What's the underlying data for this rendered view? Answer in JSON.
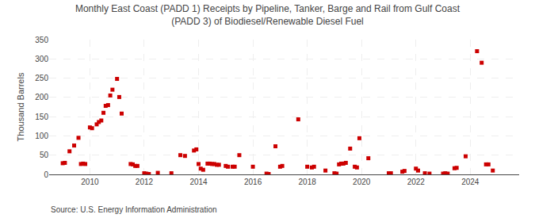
{
  "chart_data": {
    "type": "scatter",
    "title": "Monthly East Coast (PADD 1) Receipts by Pipeline, Tanker, Barge and Rail from Gulf Coast\n(PADD 3) of Biodiesel/Renewable Diesel Fuel",
    "ylabel": "Thousand Barrels",
    "annotations": [
      "Source: U.S. Energy Information Administration"
    ],
    "color": "#cc0000",
    "marker": "square",
    "grid": true,
    "xlim": [
      2008.5,
      2025.8
    ],
    "xticks": [
      2010,
      2012,
      2014,
      2016,
      2018,
      2020,
      2022,
      2024
    ],
    "ylim": [
      0,
      350
    ],
    "yticks": [
      0,
      50,
      100,
      150,
      200,
      250,
      300,
      350
    ],
    "x": [
      2009.0,
      2009.08,
      2009.25,
      2009.42,
      2009.58,
      2009.67,
      2009.75,
      2009.83,
      2010.0,
      2010.08,
      2010.25,
      2010.33,
      2010.42,
      2010.5,
      2010.58,
      2010.67,
      2010.75,
      2010.83,
      2011.0,
      2011.08,
      2011.17,
      2011.5,
      2011.58,
      2011.67,
      2011.75,
      2012.0,
      2012.08,
      2012.17,
      2012.5,
      2013.0,
      2013.33,
      2013.5,
      2013.83,
      2013.92,
      2014.0,
      2014.08,
      2014.17,
      2014.33,
      2014.42,
      2014.5,
      2014.58,
      2014.67,
      2014.75,
      2015.0,
      2015.08,
      2015.25,
      2015.33,
      2015.5,
      2016.0,
      2016.5,
      2016.58,
      2016.83,
      2017.0,
      2017.08,
      2017.67,
      2018.0,
      2018.17,
      2018.25,
      2018.67,
      2019.0,
      2019.08,
      2019.17,
      2019.25,
      2019.33,
      2019.42,
      2019.58,
      2019.75,
      2019.83,
      2019.92,
      2020.25,
      2021.0,
      2021.08,
      2021.5,
      2021.58,
      2022.0,
      2022.08,
      2022.33,
      2022.5,
      2023.0,
      2023.08,
      2023.17,
      2023.42,
      2023.5,
      2023.83,
      2024.25,
      2024.42,
      2024.58,
      2024.67,
      2024.83
    ],
    "values": [
      29,
      30,
      60,
      75,
      95,
      27,
      28,
      27,
      122,
      120,
      130,
      136,
      140,
      160,
      178,
      180,
      205,
      220,
      248,
      201,
      158,
      27,
      26,
      22,
      22,
      3,
      2,
      1,
      4,
      3,
      50,
      48,
      62,
      65,
      27,
      15,
      12,
      28,
      28,
      27,
      27,
      25,
      25,
      22,
      20,
      20,
      20,
      50,
      20,
      2,
      1,
      73,
      20,
      22,
      143,
      20,
      18,
      20,
      10,
      3,
      2,
      26,
      28,
      28,
      30,
      67,
      20,
      18,
      94,
      42,
      3,
      3,
      7,
      9,
      15,
      10,
      3,
      2,
      2,
      3,
      2,
      16,
      17,
      47,
      320,
      290,
      26,
      26,
      10
    ]
  }
}
